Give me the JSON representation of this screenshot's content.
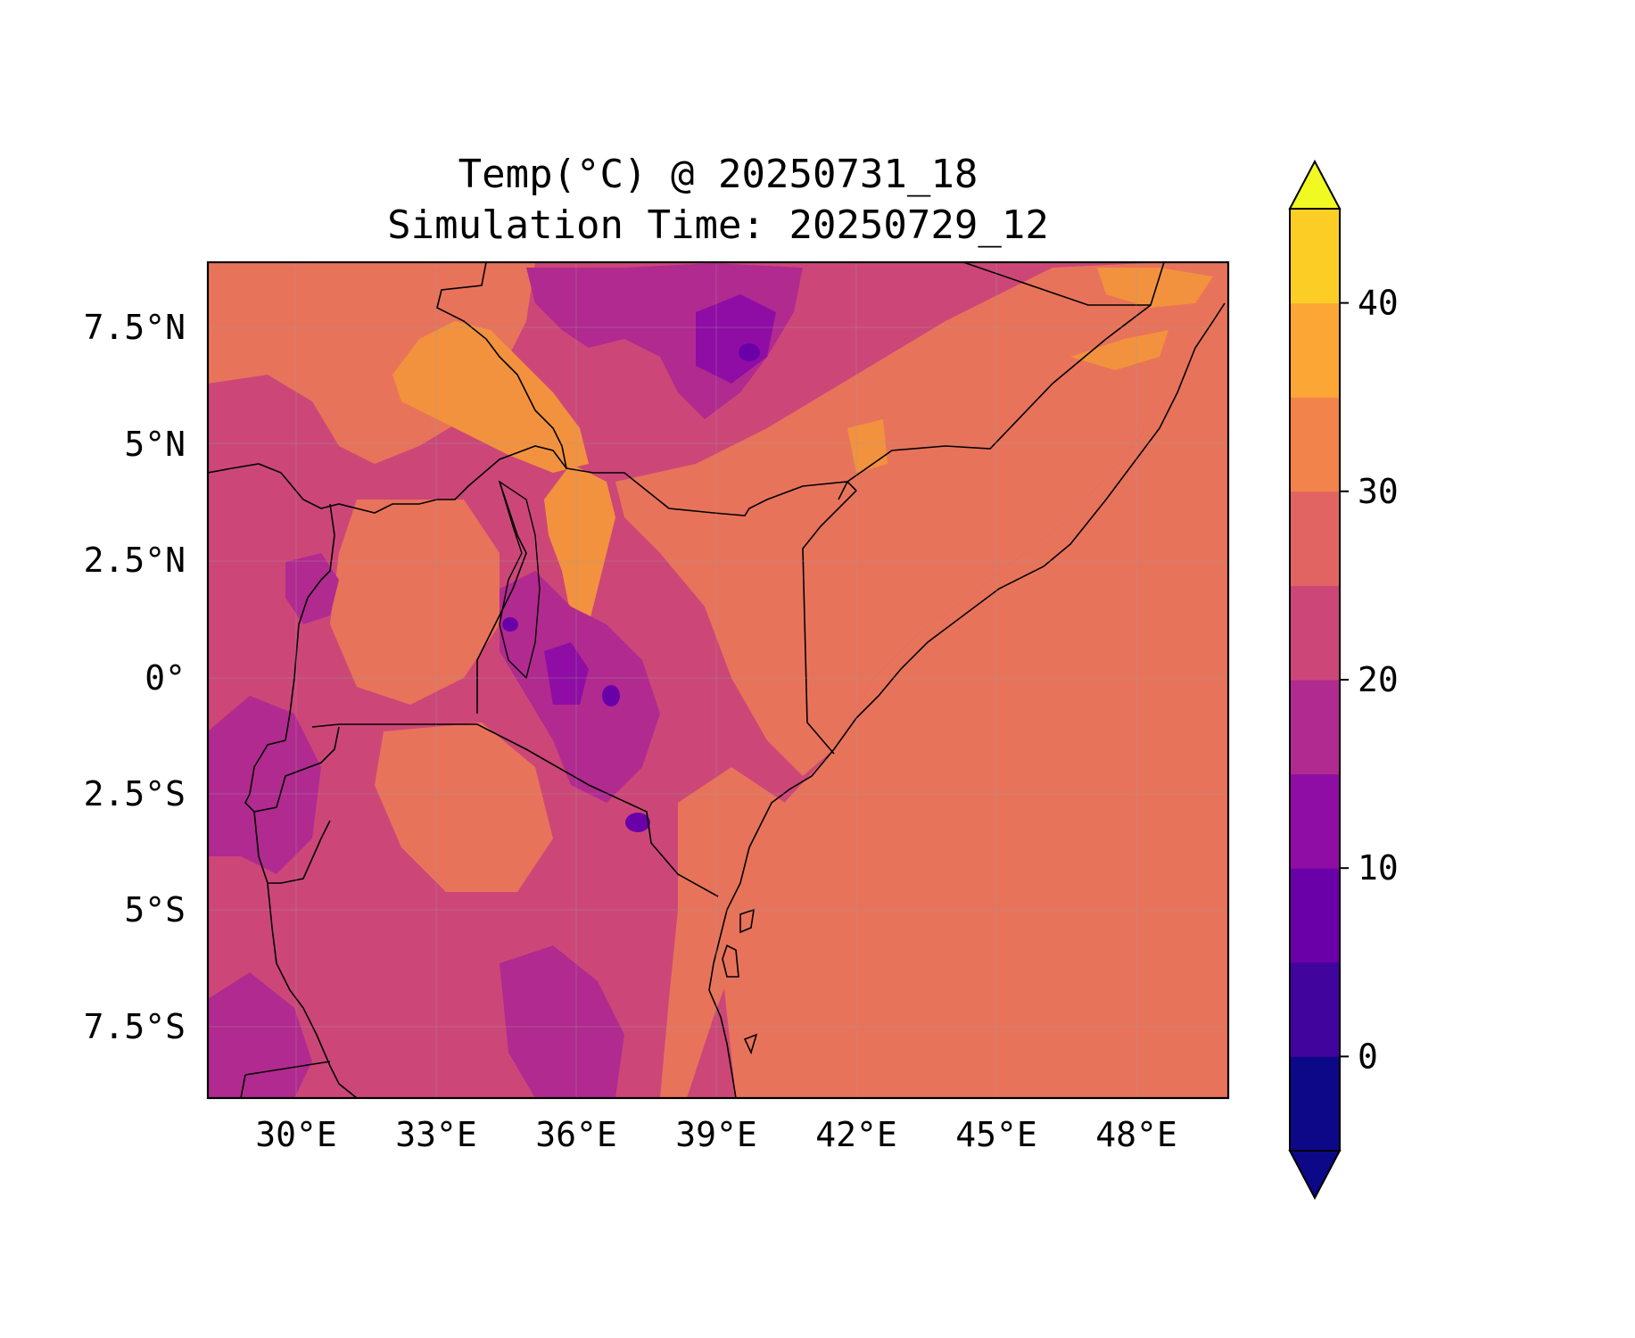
{
  "title": {
    "line1": "Temp(°C) @ 20250731_18",
    "line2": "Simulation Time: 20250729_12"
  },
  "map": {
    "lon_ticks": [
      "30°E",
      "33°E",
      "36°E",
      "39°E",
      "42°E",
      "45°E",
      "48°E"
    ],
    "lat_ticks": [
      "7.5°N",
      "5°N",
      "2.5°N",
      "0°",
      "2.5°S",
      "5°S",
      "7.5°S"
    ],
    "extent": {
      "lon_min": 28.1,
      "lon_max": 50.0,
      "lat_min": -9.0,
      "lat_max": 8.9
    },
    "gridlines": true,
    "features": [
      "coastline",
      "country-borders",
      "lakes"
    ]
  },
  "colorbar": {
    "ticks": [
      "0",
      "10",
      "20",
      "30",
      "40"
    ],
    "levels": [
      -5,
      0,
      5,
      10,
      15,
      20,
      25,
      30,
      35,
      40,
      45
    ],
    "extend": "both",
    "colormap": "plasma",
    "colors": [
      "#0d0887",
      "#41049d",
      "#6a00a8",
      "#8f0da4",
      "#b12a90",
      "#cc4778",
      "#e16462",
      "#f2844b",
      "#fca636",
      "#fcce25"
    ],
    "under_color": "#0d0887",
    "over_color": "#f0f921"
  },
  "field_colors": {
    "ocean_and_lowland": "#e8735b",
    "dominant_land": "#cc4778",
    "hot_lowland": "#f2923f",
    "highland": "#b12a90",
    "cold_peak": "#6a00a8"
  }
}
